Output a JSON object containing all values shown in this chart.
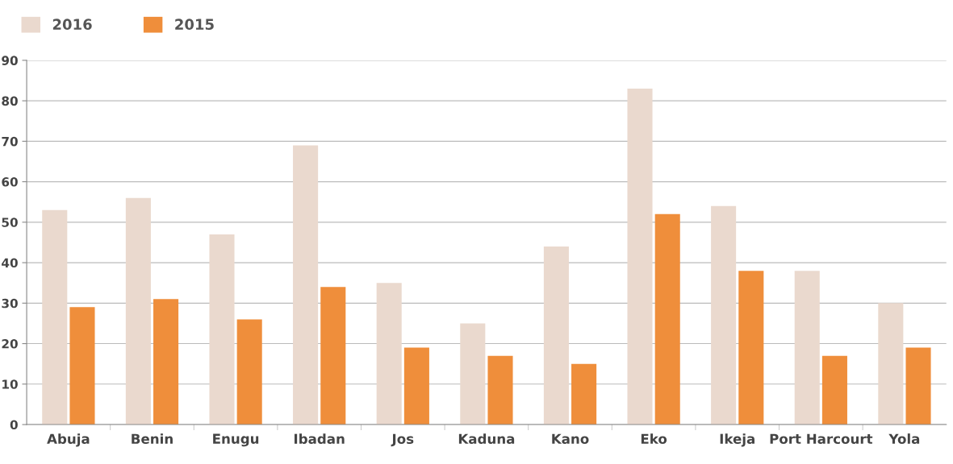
{
  "chart_data": {
    "type": "bar",
    "categories": [
      "Abuja",
      "Benin",
      "Enugu",
      "Ibadan",
      "Jos",
      "Kaduna",
      "Kano",
      "Eko",
      "Ikeja",
      "Port Harcourt",
      "Yola"
    ],
    "series": [
      {
        "name": "2016",
        "color": "#ead9ce",
        "values": [
          53,
          56,
          47,
          69,
          35,
          25,
          44,
          83,
          54,
          38,
          30
        ]
      },
      {
        "name": "2015",
        "color": "#ef8e3b",
        "values": [
          29,
          31,
          26,
          34,
          19,
          17,
          15,
          52,
          38,
          17,
          19
        ]
      }
    ],
    "ylim": [
      0,
      90
    ],
    "yticks": [
      0,
      10,
      20,
      30,
      40,
      50,
      60,
      70,
      80,
      90
    ],
    "grid": "y",
    "legend": "top left"
  }
}
